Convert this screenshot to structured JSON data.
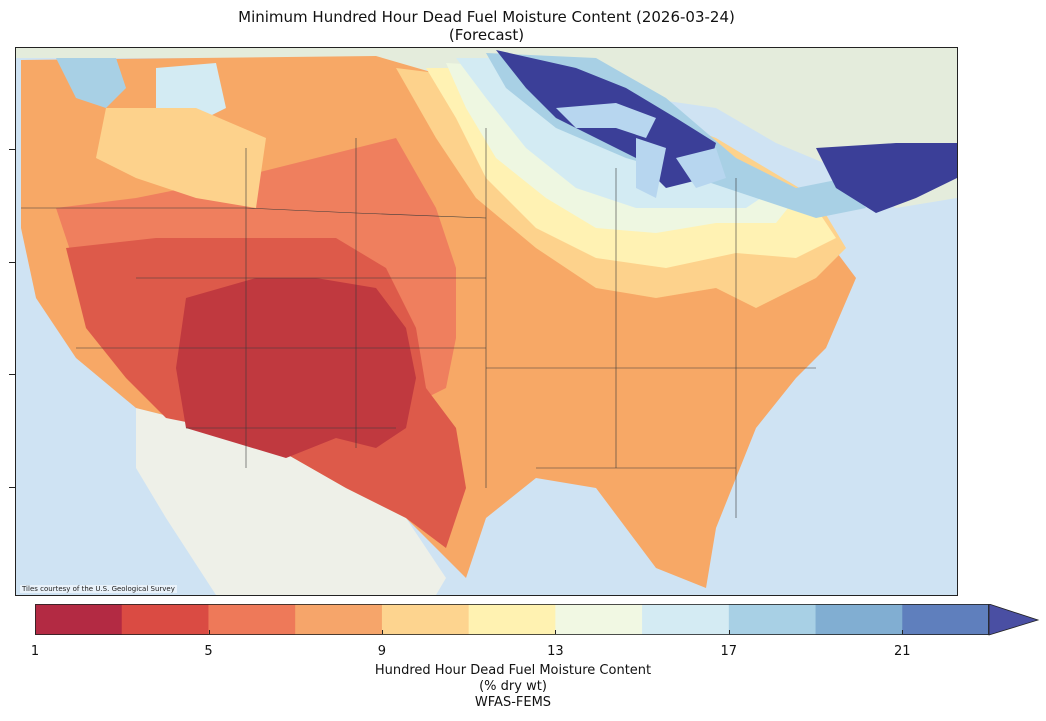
{
  "title": {
    "line1": "Minimum Hundred Hour Dead Fuel Moisture Content (2026-03-24)",
    "line2": "(Forecast)"
  },
  "map": {
    "attribution": "Tiles courtesy of the U.S. Geological Survey",
    "legend_scale": "fuel moisture % dry wt",
    "colors": {
      "ocean": "#cfe3f3",
      "land_canada": "#e4ecdc",
      "land_mexico": "#eef0e8",
      "great_lakes": "#b7d6ef"
    },
    "regions": [
      {
        "name": "southwest-core",
        "level": 1,
        "color": "#c0393f"
      },
      {
        "name": "interior-west",
        "level": 5,
        "color": "#dd5a4a"
      },
      {
        "name": "plains-rockies",
        "level": 7,
        "color": "#ef7f5e"
      },
      {
        "name": "southeast-plains",
        "level": 9,
        "color": "#f7a866"
      },
      {
        "name": "transition",
        "level": 11,
        "color": "#fdd28c"
      },
      {
        "name": "midwest",
        "level": 13,
        "color": "#fff2b3"
      },
      {
        "name": "upper-midwest",
        "level": 15,
        "color": "#eef7e1"
      },
      {
        "name": "northern-tier",
        "level": 17,
        "color": "#d3ebf3"
      },
      {
        "name": "great-lakes-edge",
        "level": 19,
        "color": "#a8d0e5"
      },
      {
        "name": "great-lakes-new-england",
        "level": 23,
        "color": "#3b3f98"
      }
    ]
  },
  "colorbar": {
    "colors": [
      "#b32a43",
      "#da4b43",
      "#ee7959",
      "#f6a56a",
      "#fdd48f",
      "#fff2b1",
      "#f1f8e3",
      "#d4ebf3",
      "#a8d0e5",
      "#81aed2",
      "#5f7fbd"
    ],
    "extend_color": "#4a4fa3",
    "ticks": [
      "1",
      "5",
      "9",
      "13",
      "17",
      "21"
    ],
    "label_line1": "Hundred Hour Dead Fuel Moisture Content",
    "label_line2": "(% dry wt)",
    "label_line3": "WFAS-FEMS"
  }
}
